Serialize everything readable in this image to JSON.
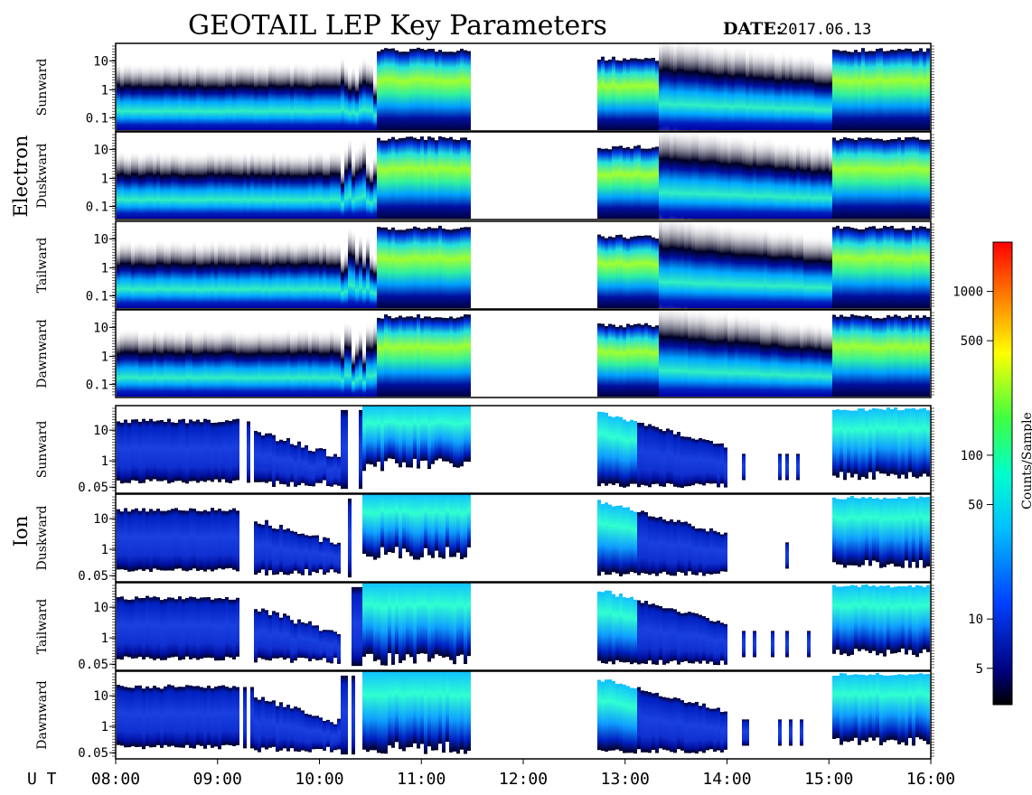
{
  "header": {
    "title": "GEOTAIL LEP Key Parameters",
    "date_label": "DATE:",
    "date_value": "2017.06.13"
  },
  "chart_data": {
    "type": "heatmap",
    "title": "GEOTAIL LEP Key Parameters",
    "x_axis": {
      "label": "U T",
      "range": [
        "08:00",
        "16:00"
      ],
      "ticks": [
        "08:00",
        "09:00",
        "10:00",
        "11:00",
        "12:00",
        "13:00",
        "14:00",
        "15:00",
        "16:00"
      ]
    },
    "data_gaps": [
      {
        "from": "11:30",
        "to": "12:42"
      }
    ],
    "groups": [
      {
        "name": "Electron",
        "y_scale": "log",
        "y_ticks": [
          "10",
          "1",
          "0.1"
        ],
        "panels": [
          "Sunward",
          "Duskward",
          "Tailward",
          "Dawnward"
        ]
      },
      {
        "name": "Ion",
        "y_scale": "log",
        "y_ticks": [
          "10",
          "1",
          "0.05"
        ],
        "panels": [
          "Sunward",
          "Duskward",
          "Tailward",
          "Dawnward"
        ]
      }
    ],
    "colorbar": {
      "label": "Counts/Sample",
      "scale": "log",
      "range": [
        3,
        2000
      ],
      "ticks": [
        "1000",
        "500",
        "100",
        "50",
        "10",
        "5"
      ],
      "colors": [
        "#000000",
        "#00007a",
        "#0040ff",
        "#00c0ff",
        "#00ffcc",
        "#40ff40",
        "#ffff00",
        "#ff8000",
        "#ff0000"
      ]
    }
  }
}
